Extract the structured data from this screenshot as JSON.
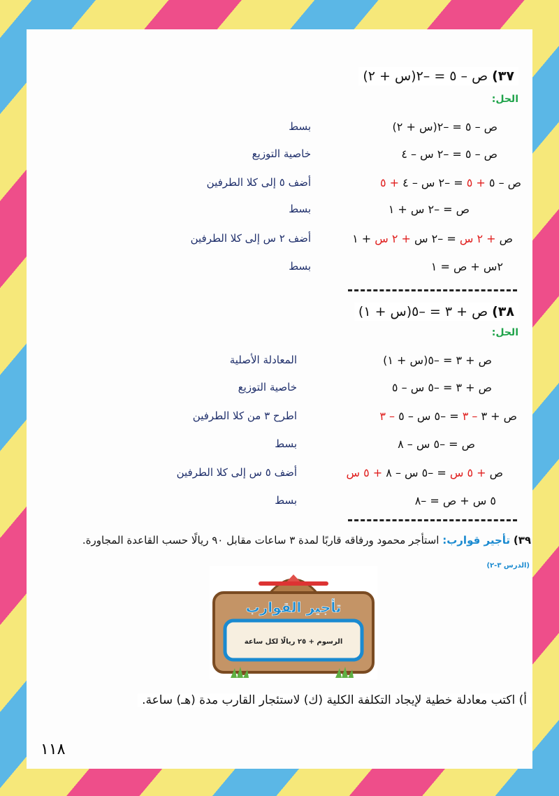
{
  "problems": [
    {
      "number": "٣٧)",
      "equation": "ص – ٥ = –٢(س + ٢)",
      "solution_label": "الحل:",
      "steps": [
        {
          "segments": [
            {
              "t": "ص – ٥ = –٢(س + ٢)"
            }
          ],
          "note": "بسط"
        },
        {
          "segments": [
            {
              "t": "ص – ٥ = –٢ س – ٤"
            }
          ],
          "note": "خاصية التوزيع"
        },
        {
          "segments": [
            {
              "t": "ص – ٥ "
            },
            {
              "t": "+ ٥",
              "red": true
            },
            {
              "t": " = –٢ س – ٤ "
            },
            {
              "t": "+ ٥",
              "red": true
            }
          ],
          "note": "أضف ٥ إلى كلا الطرفين"
        },
        {
          "segments": [
            {
              "t": "ص = –٢ س + ١"
            }
          ],
          "note": "بسط"
        },
        {
          "segments": [
            {
              "t": "ص "
            },
            {
              "t": "+ ٢ س",
              "red": true
            },
            {
              "t": " = –٢ س "
            },
            {
              "t": "+ ٢ س",
              "red": true
            },
            {
              "t": " + ١"
            }
          ],
          "note": "أضف ٢ س إلى كلا الطرفين"
        },
        {
          "segments": [
            {
              "t": "٢س + ص = ١"
            }
          ],
          "note": "بسط"
        }
      ]
    },
    {
      "number": "٣٨)",
      "equation": "ص + ٣ = –٥(س + ١)",
      "solution_label": "الحل:",
      "steps": [
        {
          "segments": [
            {
              "t": "ص + ٣ = –٥(س + ١)"
            }
          ],
          "note": "المعادلة الأصلية"
        },
        {
          "segments": [
            {
              "t": "ص + ٣ = –٥ س – ٥"
            }
          ],
          "note": "خاصية التوزيع"
        },
        {
          "segments": [
            {
              "t": "ص + ٣ "
            },
            {
              "t": "– ٣",
              "red": true
            },
            {
              "t": " = –٥ س – ٥ "
            },
            {
              "t": "– ٣",
              "red": true
            }
          ],
          "note": "اطرح ٣ من كلا الطرفين"
        },
        {
          "segments": [
            {
              "t": "ص = –٥ س – ٨"
            }
          ],
          "note": "بسط"
        },
        {
          "segments": [
            {
              "t": "ص "
            },
            {
              "t": "+ ٥ س",
              "red": true
            },
            {
              "t": " = –٥ س – ٨ "
            },
            {
              "t": "+ ٥ س",
              "red": true
            }
          ],
          "note": "أضف ٥ س إلى كلا الطرفين"
        },
        {
          "segments": [
            {
              "t": "٥ س + ص = –٨"
            }
          ],
          "note": "بسط"
        }
      ]
    }
  ],
  "problem39": {
    "number": "٣٩)",
    "title": "تأجير قوارب:",
    "text": "استأجر محمود ورفاقه قاربًا لمدة ٣ ساعات مقابل ٩٠ ريالًا حسب القاعدة المجاورة.",
    "lesson_ref": "(الدرس ٣-٢)",
    "sign": {
      "title": "تأجير القوارب",
      "rule": "الرسوم + ٢٥ ريالًا لكل ساعة"
    },
    "question_a": "أ) اكتب معادلة خطية لإيجاد التكلفة الكلية (ك) لاستئجار القارب مدة (هـ) ساعة."
  },
  "page_number": "١١٨",
  "colors": {
    "stripe_blue": "#5bb7e6",
    "stripe_yellow": "#f6e87a",
    "stripe_pink": "#ee4e8a",
    "highlight_red": "#e0201f",
    "note_blue": "#1f2f6b",
    "solution_green": "#1fa34a"
  }
}
